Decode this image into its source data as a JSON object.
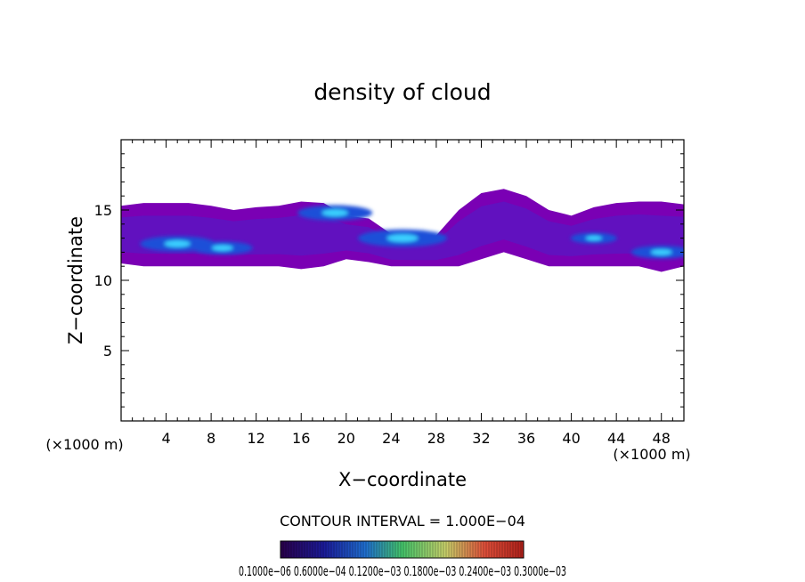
{
  "chart_data": {
    "type": "heatmap",
    "title": "density of cloud",
    "xlabel": "X−coordinate",
    "ylabel": "Z−coordinate",
    "x_unit_left": "(×1000 m)",
    "x_unit_right": "(×1000 m)",
    "xlim": [
      0,
      50
    ],
    "ylim": [
      0,
      20
    ],
    "x_ticks": [
      4,
      8,
      12,
      16,
      20,
      24,
      28,
      32,
      36,
      40,
      44,
      48
    ],
    "y_ticks": [
      5,
      10,
      15
    ],
    "contour_interval_text": "CONTOUR INTERVAL = 1.000E−04",
    "colorbar_labels_text": "0.1000e−06 0.6000e−04 0.1200e−03 0.1800e−03 0.2400e−03 0.3000e−03",
    "colorbar_range": [
      1e-07,
      0.0003
    ],
    "colors": {
      "background": "#ffffff",
      "cloud_base": "#7a00b4",
      "cloud_mid": "#4d1fc8",
      "cloud_dense": "#1a4fd8",
      "cloud_peak": "#3ad0ff",
      "axis": "#000000"
    },
    "cloud_band": {
      "top_z": [
        15.3,
        15.5,
        15.5,
        15.5,
        15.3,
        15.0,
        15.2,
        15.3,
        15.6,
        15.5,
        14.6,
        14.4,
        13.3,
        13.2,
        13.2,
        15.0,
        16.2,
        16.5,
        16.0,
        15.0,
        14.6,
        15.2,
        15.5,
        15.6,
        15.6,
        15.4
      ],
      "bottom_z": [
        11.2,
        11.0,
        11.0,
        11.0,
        11.0,
        11.0,
        11.0,
        11.0,
        10.8,
        11.0,
        11.5,
        11.3,
        11.0,
        11.0,
        11.0,
        11.0,
        11.5,
        12.0,
        11.5,
        11.0,
        11.0,
        11.0,
        11.0,
        11.0,
        10.6,
        11.0
      ],
      "x_step": 2
    },
    "dense_cores": [
      {
        "x": 5,
        "z": 12.6,
        "level": 0.00018
      },
      {
        "x": 9,
        "z": 12.3,
        "level": 0.00012
      },
      {
        "x": 19,
        "z": 14.8,
        "level": 0.00018
      },
      {
        "x": 25,
        "z": 13.0,
        "level": 0.00024
      },
      {
        "x": 42,
        "z": 13.0,
        "level": 6e-05
      },
      {
        "x": 48,
        "z": 12.0,
        "level": 0.00012
      }
    ]
  }
}
